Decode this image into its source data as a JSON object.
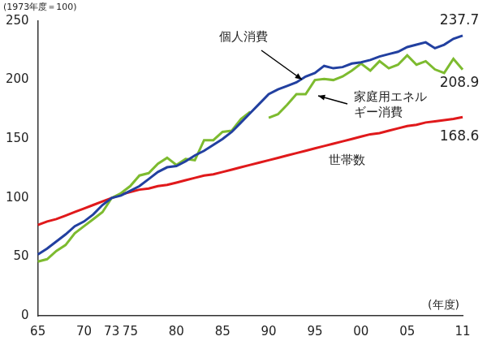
{
  "chart_data": {
    "type": "line",
    "y_label": "(1973年度＝100)",
    "x_label": "(年度)",
    "categories": [
      "65",
      null,
      null,
      null,
      null,
      "70",
      null,
      null,
      "73",
      null,
      "75",
      null,
      null,
      null,
      null,
      "80",
      null,
      null,
      null,
      null,
      "85",
      null,
      null,
      null,
      null,
      "90",
      null,
      null,
      null,
      null,
      "95",
      null,
      null,
      null,
      null,
      "00",
      null,
      null,
      null,
      null,
      "05",
      null,
      null,
      null,
      null,
      null,
      "11"
    ],
    "series": [
      {
        "name": "個人消費",
        "color": "#2240a0",
        "values": [
          52,
          57,
          63,
          69,
          76,
          80,
          86,
          94,
          100,
          102,
          106,
          110,
          116,
          122,
          126,
          127,
          131,
          136,
          140,
          145,
          150,
          156,
          164,
          172,
          180,
          188,
          192,
          195,
          198,
          203,
          206,
          212,
          210,
          211,
          214,
          215,
          217,
          220,
          222,
          224,
          228,
          230,
          232,
          227,
          230,
          235,
          237.7
        ]
      },
      {
        "name": "家庭用エネルギー消費",
        "color": "#7dbb2f",
        "values": [
          46,
          48,
          55,
          60,
          70,
          76,
          82,
          88,
          100,
          104,
          110,
          119,
          121,
          129,
          134,
          128,
          133,
          132,
          149,
          149,
          156,
          157,
          167,
          173,
          null,
          168,
          171,
          179,
          188,
          188,
          200,
          201,
          200,
          203,
          208,
          214,
          208,
          216,
          210,
          213,
          221,
          213,
          216,
          209,
          206,
          218,
          208.9
        ]
      },
      {
        "name": "世帯数",
        "color": "#e0191b",
        "values": [
          77,
          80,
          82,
          85,
          88,
          91,
          94,
          97,
          100,
          103,
          105,
          107,
          108,
          110,
          111,
          113,
          115,
          117,
          119,
          120,
          122,
          124,
          126,
          128,
          130,
          132,
          134,
          136,
          138,
          140,
          142,
          144,
          146,
          148,
          150,
          152,
          154,
          155,
          157,
          159,
          161,
          162,
          164,
          165,
          166,
          167,
          168.6
        ]
      }
    ],
    "annotations": [
      "237.7",
      "208.9",
      "168.6"
    ],
    "ylim": [
      0,
      250
    ],
    "yticks": [
      0,
      50,
      100,
      150,
      200,
      250
    ],
    "grid": false
  }
}
